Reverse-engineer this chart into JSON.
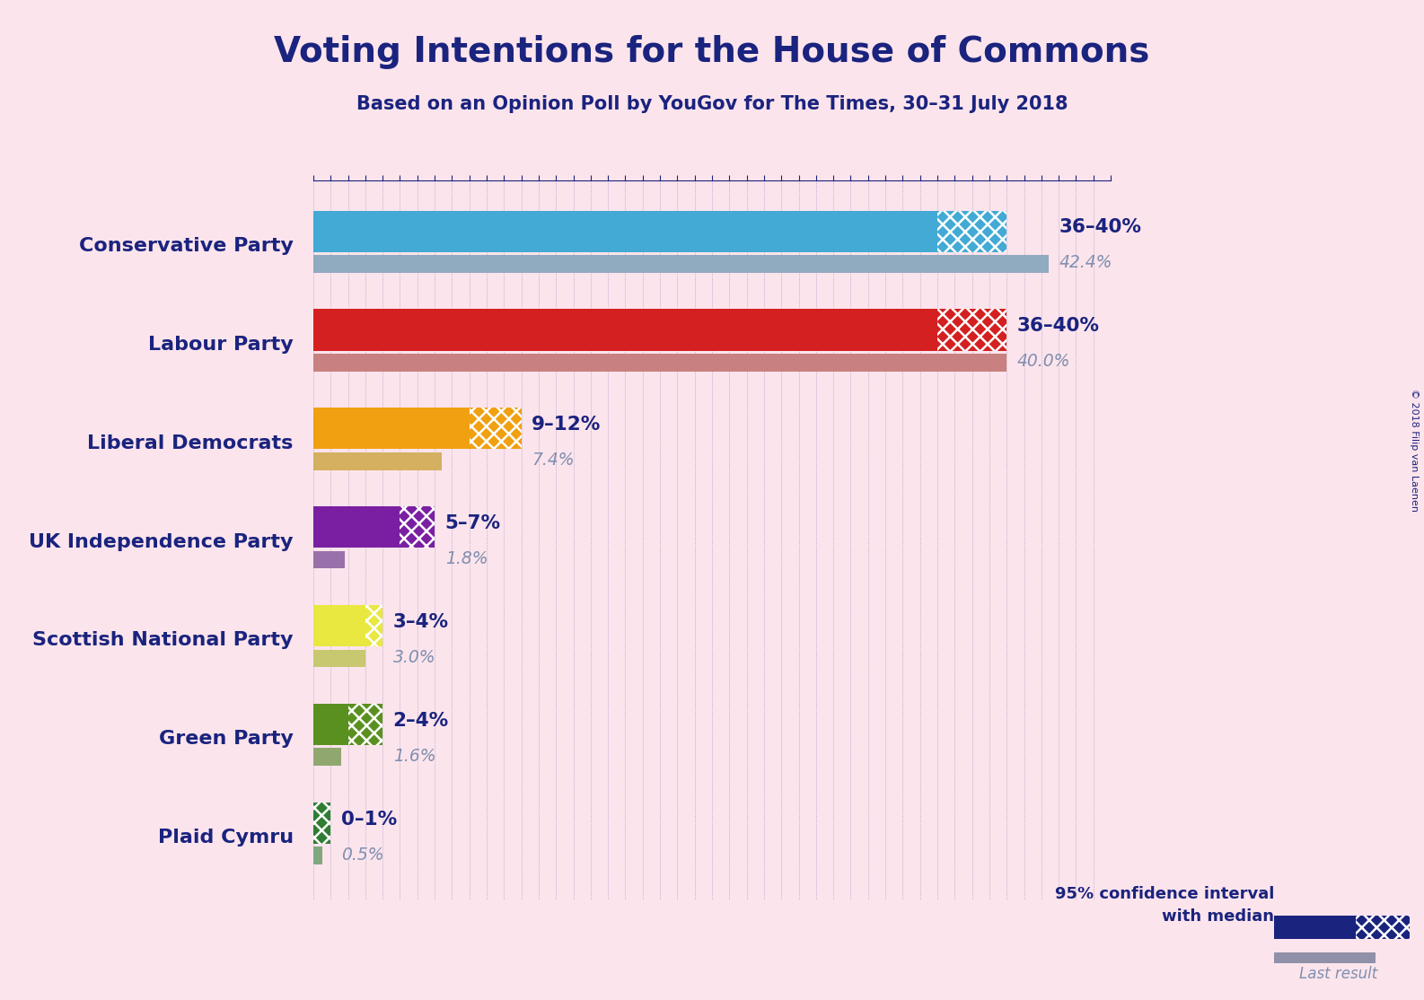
{
  "title": "Voting Intentions for the House of Commons",
  "subtitle": "Based on an Opinion Poll by YouGov for The Times, 30–31 July 2018",
  "copyright": "© 2018 Filip van Laenen",
  "background_color": "#fce4ec",
  "title_color": "#1a237e",
  "subtitle_color": "#1a237e",
  "parties": [
    {
      "name": "Conservative Party",
      "ci_low": 36,
      "ci_high": 40,
      "last_result": 42.4,
      "bar_color": "#42aad4",
      "last_color": "#90aabf",
      "label": "36–40%",
      "last_label": "42.4%"
    },
    {
      "name": "Labour Party",
      "ci_low": 36,
      "ci_high": 40,
      "last_result": 40.0,
      "bar_color": "#d42020",
      "last_color": "#c98080",
      "label": "36–40%",
      "last_label": "40.0%"
    },
    {
      "name": "Liberal Democrats",
      "ci_low": 9,
      "ci_high": 12,
      "last_result": 7.4,
      "bar_color": "#f0a010",
      "last_color": "#d4b060",
      "label": "9–12%",
      "last_label": "7.4%"
    },
    {
      "name": "UK Independence Party",
      "ci_low": 5,
      "ci_high": 7,
      "last_result": 1.8,
      "bar_color": "#7b1fa2",
      "last_color": "#9a70aa",
      "label": "5–7%",
      "last_label": "1.8%"
    },
    {
      "name": "Scottish National Party",
      "ci_low": 3,
      "ci_high": 4,
      "last_result": 3.0,
      "bar_color": "#e8e840",
      "last_color": "#c8c870",
      "label": "3–4%",
      "last_label": "3.0%"
    },
    {
      "name": "Green Party",
      "ci_low": 2,
      "ci_high": 4,
      "last_result": 1.6,
      "bar_color": "#5a9020",
      "last_color": "#90a870",
      "label": "2–4%",
      "last_label": "1.6%"
    },
    {
      "name": "Plaid Cymru",
      "ci_low": 0,
      "ci_high": 1,
      "last_result": 0.5,
      "bar_color": "#2e7d32",
      "last_color": "#80a880",
      "label": "0–1%",
      "last_label": "0.5%"
    }
  ],
  "xlim": [
    0,
    46
  ],
  "label_color": "#1a237e",
  "last_label_color": "#8090b0",
  "party_name_color": "#1a237e",
  "grid_color": "#1a237e",
  "legend_ci_text": "95% confidence interval\nwith median",
  "legend_last_text": "Last result",
  "legend_color": "#1a237e",
  "legend_last_color": "#8090b0"
}
